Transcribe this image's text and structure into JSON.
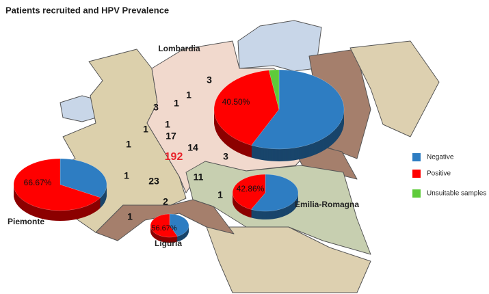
{
  "title": "Patients recruited and HPV Prevalence",
  "legend": {
    "series": [
      {
        "name": "Negative",
        "color": "#2e7dc2"
      },
      {
        "name": "Positive",
        "color": "#ff0000"
      },
      {
        "name": "Unsuitable samples",
        "color": "#5ecb3a"
      }
    ]
  },
  "regions": [
    {
      "name": "Lombardia",
      "total": 192,
      "counts": [
        3,
        1,
        1,
        3,
        1,
        17,
        14,
        3
      ],
      "pie": {
        "values": [
          57,
          40.5,
          2.5
        ],
        "value_labels": [
          null,
          "40.50%",
          null
        ]
      }
    },
    {
      "name": "Piemonte",
      "counts": [
        1,
        1,
        1,
        23
      ],
      "pie": {
        "values": [
          33.33,
          66.67,
          0
        ],
        "value_labels": [
          null,
          "66.67%",
          null
        ]
      }
    },
    {
      "name": "Emilia-Romagna",
      "counts": [
        11,
        1
      ],
      "pie": {
        "values": [
          57.14,
          42.86,
          0
        ],
        "value_labels": [
          null,
          "42.86%",
          null
        ]
      }
    },
    {
      "name": "Liguria",
      "counts": [
        2,
        1
      ],
      "pie": {
        "values": [
          43.33,
          56.67,
          0
        ],
        "value_labels": [
          null,
          "56.67%",
          null
        ]
      }
    }
  ]
}
